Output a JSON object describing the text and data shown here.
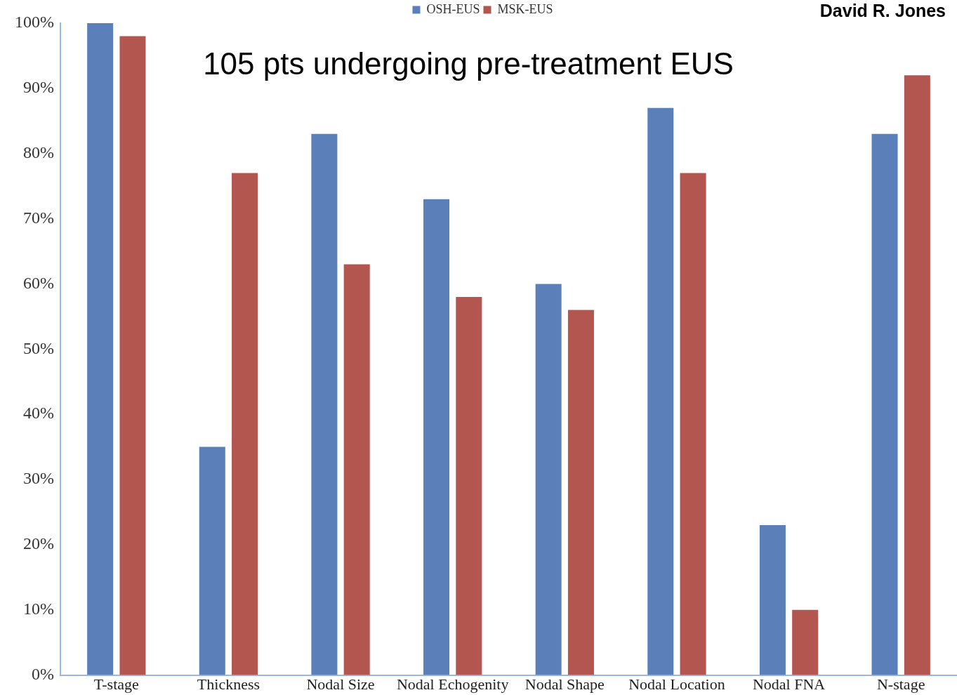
{
  "chart_data": {
    "type": "bar",
    "title": "105 pts undergoing pre-treatment EUS",
    "annotations": [
      "David R. Jones"
    ],
    "categories": [
      "T-stage",
      "Thickness",
      "Nodal Size",
      "Nodal Echogenity",
      "Nodal Shape",
      "Nodal Location",
      "Nodal FNA",
      "N-stage"
    ],
    "series": [
      {
        "name": "OSH-EUS",
        "color": "#5b80b9",
        "values": [
          100,
          35,
          83,
          73,
          60,
          87,
          23,
          83
        ]
      },
      {
        "name": "MSK-EUS",
        "color": "#b2564f",
        "values": [
          98,
          77,
          63,
          58,
          56,
          77,
          10,
          92
        ]
      }
    ],
    "ylim": [
      0,
      100
    ],
    "yticks": [
      {
        "value": 0,
        "label": "0%"
      },
      {
        "value": 10,
        "label": "10%"
      },
      {
        "value": 20,
        "label": "20%"
      },
      {
        "value": 30,
        "label": "30%"
      },
      {
        "value": 40,
        "label": "40%"
      },
      {
        "value": 50,
        "label": "50%"
      },
      {
        "value": 60,
        "label": "60%"
      },
      {
        "value": 70,
        "label": "70%"
      },
      {
        "value": 80,
        "label": "80%"
      },
      {
        "value": 90,
        "label": "90%"
      },
      {
        "value": 100,
        "label": "100%"
      }
    ],
    "grid": false,
    "legend": "top"
  }
}
